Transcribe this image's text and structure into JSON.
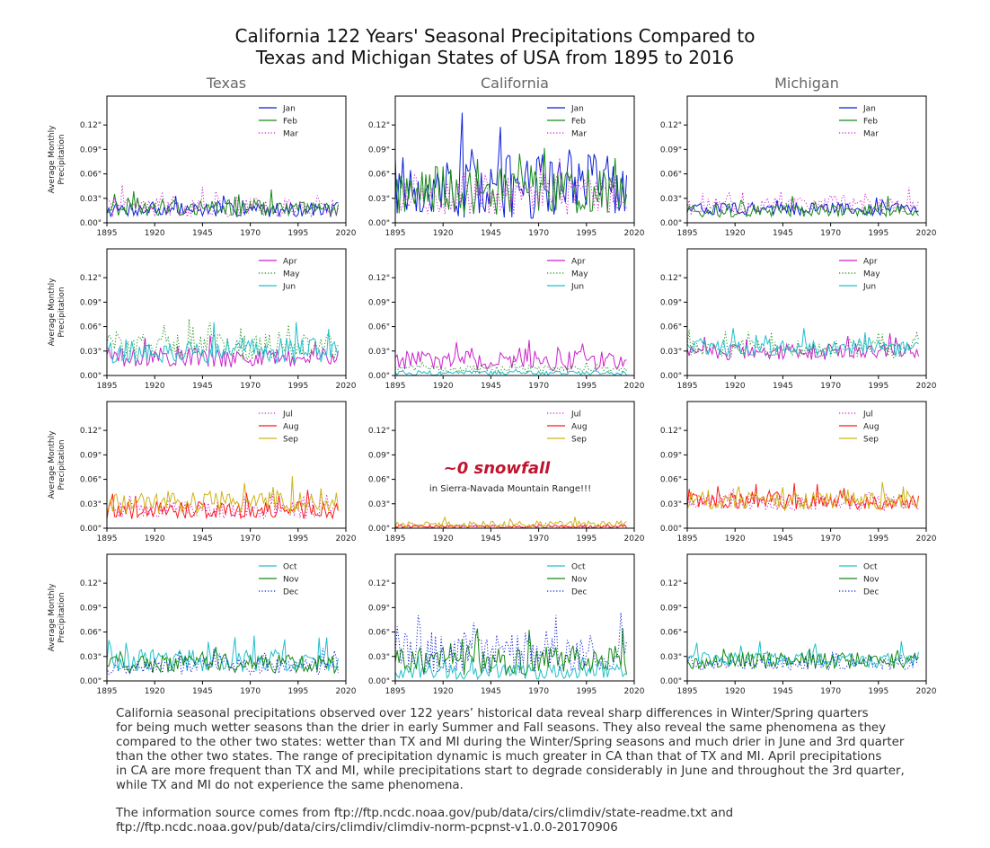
{
  "title_lines": [
    "California 122 Years' Seasonal Precipitations Compared to",
    "Texas and Michigan States of USA from 1895 to 2016"
  ],
  "caption": {
    "paragraph1": [
      "California seasonal precipitations observed over 122 years’ historical data reveal sharp differences in Winter/Spring quarters",
      "for being much wetter seasons than the drier in early Summer and Fall seasons. They also reveal the same phenomena as they",
      "compared to the other two states: wetter than TX and MI during the Winter/Spring seasons and much drier in June and 3rd quarter",
      "than the other two states. The range of precipitation dynamic is much greater in CA than that of TX and MI. April precipitations",
      "in CA are more frequent than TX and MI, while precipitations start to degrade considerably in June and throughout the 3rd quarter,",
      "while TX and MI do not experience the same phenomena."
    ],
    "paragraph2": [
      "The information source comes from ftp://ftp.ncdc.noaa.gov/pub/data/cirs/climdiv/state-readme.txt and",
      "ftp://ftp.ncdc.noaa.gov/pub/data/cirs/climdiv/climdiv-norm-pcpnst-v1.0.0-20170906"
    ]
  },
  "chart_data": {
    "type": "line",
    "columns": [
      "Texas",
      "California",
      "Michigan"
    ],
    "ylabel": "Average Monthly\nPrecipitation",
    "xlim": [
      1895,
      2020
    ],
    "ylim": [
      0,
      0.14
    ],
    "xticks": [
      1895,
      1920,
      1945,
      1970,
      1995,
      2020
    ],
    "yticks": [
      "0.00\"",
      "0.03\"",
      "0.06\"",
      "0.09\"",
      "0.12\""
    ],
    "ytick_values": [
      0,
      0.03,
      0.06,
      0.09,
      0.12
    ],
    "legend_position": "upper right",
    "years": [
      1895,
      2016
    ],
    "series_style": {
      "Jan": {
        "color": "#0a1fd8",
        "dash": "solid"
      },
      "Feb": {
        "color": "#178a17",
        "dash": "solid"
      },
      "Mar": {
        "color": "#cc22cc",
        "dash": "dotted"
      },
      "Apr": {
        "color": "#cc22cc",
        "dash": "solid"
      },
      "May": {
        "color": "#178a17",
        "dash": "dotted"
      },
      "Jun": {
        "color": "#22c0cc",
        "dash": "solid"
      },
      "Jul": {
        "color": "#cc22cc",
        "dash": "dotted"
      },
      "Aug": {
        "color": "#ff1a1a",
        "dash": "solid"
      },
      "Sep": {
        "color": "#cfb21a",
        "dash": "solid"
      },
      "Oct": {
        "color": "#22c0cc",
        "dash": "solid"
      },
      "Nov": {
        "color": "#178a17",
        "dash": "solid"
      },
      "Dec": {
        "color": "#0a1fd8",
        "dash": "dotted"
      }
    },
    "rows": [
      {
        "months": [
          "Jan",
          "Feb",
          "Mar"
        ],
        "panels": {
          "Texas": {
            "Jan": {
              "mean": 0.016,
              "amp": 0.009
            },
            "Feb": {
              "mean": 0.018,
              "amp": 0.01
            },
            "Mar": {
              "mean": 0.019,
              "amp": 0.012
            }
          },
          "California": {
            "Jan": {
              "mean": 0.045,
              "amp": 0.04
            },
            "Feb": {
              "mean": 0.04,
              "amp": 0.03
            },
            "Mar": {
              "mean": 0.035,
              "amp": 0.025
            }
          },
          "Michigan": {
            "Jan": {
              "mean": 0.017,
              "amp": 0.008
            },
            "Feb": {
              "mean": 0.015,
              "amp": 0.008
            },
            "Mar": {
              "mean": 0.021,
              "amp": 0.01
            }
          }
        }
      },
      {
        "months": [
          "Apr",
          "May",
          "Jun"
        ],
        "panels": {
          "Texas": {
            "Apr": {
              "mean": 0.022,
              "amp": 0.012
            },
            "May": {
              "mean": 0.035,
              "amp": 0.016
            },
            "Jun": {
              "mean": 0.03,
              "amp": 0.016
            }
          },
          "California": {
            "Apr": {
              "mean": 0.018,
              "amp": 0.012
            },
            "May": {
              "mean": 0.008,
              "amp": 0.005
            },
            "Jun": {
              "mean": 0.003,
              "amp": 0.003
            }
          },
          "Michigan": {
            "Apr": {
              "mean": 0.029,
              "amp": 0.01
            },
            "May": {
              "mean": 0.033,
              "amp": 0.011
            },
            "Jun": {
              "mean": 0.034,
              "amp": 0.011
            }
          }
        }
      },
      {
        "months": [
          "Jul",
          "Aug",
          "Sep"
        ],
        "panels": {
          "Texas": {
            "Jul": {
              "mean": 0.023,
              "amp": 0.011
            },
            "Aug": {
              "mean": 0.022,
              "amp": 0.011
            },
            "Sep": {
              "mean": 0.032,
              "amp": 0.014
            }
          },
          "California": {
            "Jul": {
              "mean": 0.002,
              "amp": 0.002
            },
            "Aug": {
              "mean": 0.002,
              "amp": 0.002
            },
            "Sep": {
              "mean": 0.005,
              "amp": 0.004
            }
          },
          "Michigan": {
            "Jul": {
              "mean": 0.032,
              "amp": 0.01
            },
            "Aug": {
              "mean": 0.033,
              "amp": 0.01
            },
            "Sep": {
              "mean": 0.034,
              "amp": 0.012
            }
          }
        }
      },
      {
        "months": [
          "Oct",
          "Nov",
          "Dec"
        ],
        "panels": {
          "Texas": {
            "Oct": {
              "mean": 0.025,
              "amp": 0.014
            },
            "Nov": {
              "mean": 0.021,
              "amp": 0.012
            },
            "Dec": {
              "mean": 0.018,
              "amp": 0.01
            }
          },
          "California": {
            "Oct": {
              "mean": 0.012,
              "amp": 0.01
            },
            "Nov": {
              "mean": 0.025,
              "amp": 0.018
            },
            "Dec": {
              "mean": 0.035,
              "amp": 0.025
            }
          },
          "Michigan": {
            "Oct": {
              "mean": 0.026,
              "amp": 0.01
            },
            "Nov": {
              "mean": 0.025,
              "amp": 0.01
            },
            "Dec": {
              "mean": 0.021,
              "amp": 0.008
            }
          }
        }
      }
    ],
    "annotation": {
      "headline": "~0 snowfall",
      "subtext": "in Sierra-Navada Mountain Range!!!",
      "headline_color": "#c0152f"
    }
  }
}
